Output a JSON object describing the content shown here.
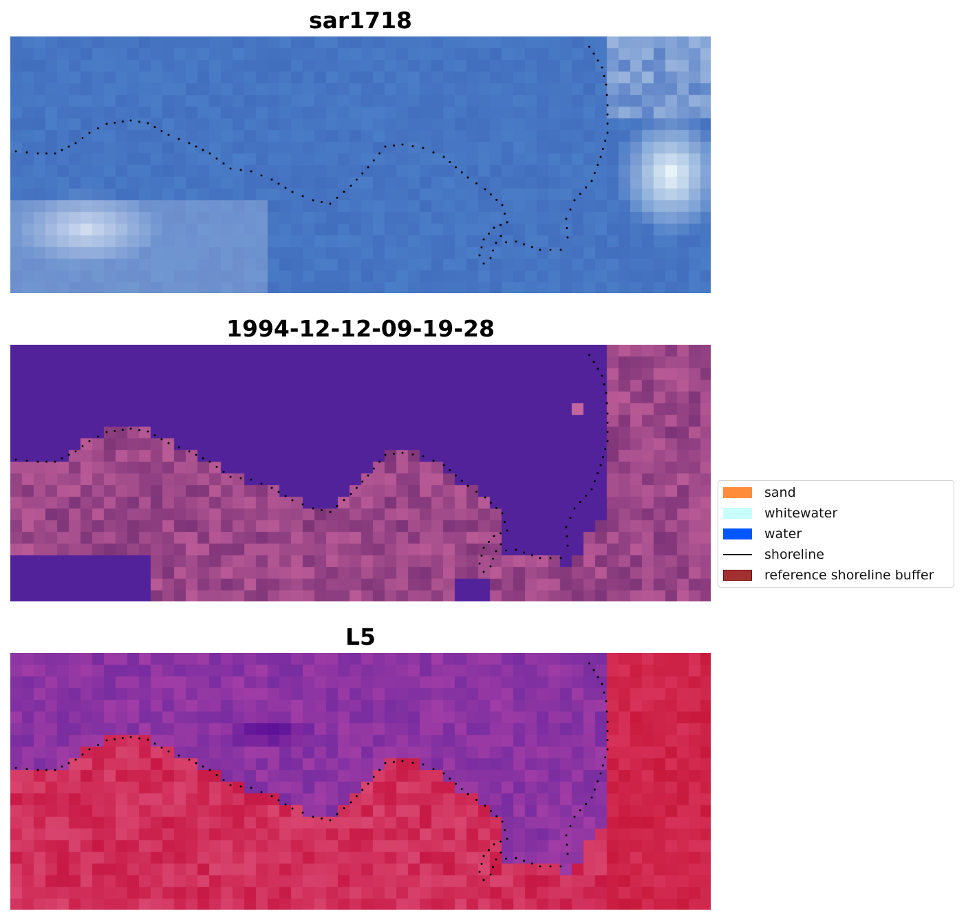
{
  "panels": [
    {
      "title": "sar1718",
      "theme": "rgb"
    },
    {
      "title": "1994-12-12-09-19-28",
      "theme": "classified"
    },
    {
      "title": "L5",
      "theme": "ndwi"
    }
  ],
  "legend": {
    "items": [
      {
        "label": "sand",
        "type": "patch",
        "color": "#ff8c3a"
      },
      {
        "label": "whitewater",
        "type": "patch",
        "color": "#c8fffc"
      },
      {
        "label": "water",
        "type": "patch",
        "color": "#0057ff"
      },
      {
        "label": "shoreline",
        "type": "line",
        "color": "#000000"
      },
      {
        "label": "reference shoreline buffer",
        "type": "patch",
        "color": "#a33030",
        "edge": "#7a1010"
      }
    ]
  },
  "colors": {
    "water_class": "#52229a",
    "shoreline_dots": "#000000"
  }
}
